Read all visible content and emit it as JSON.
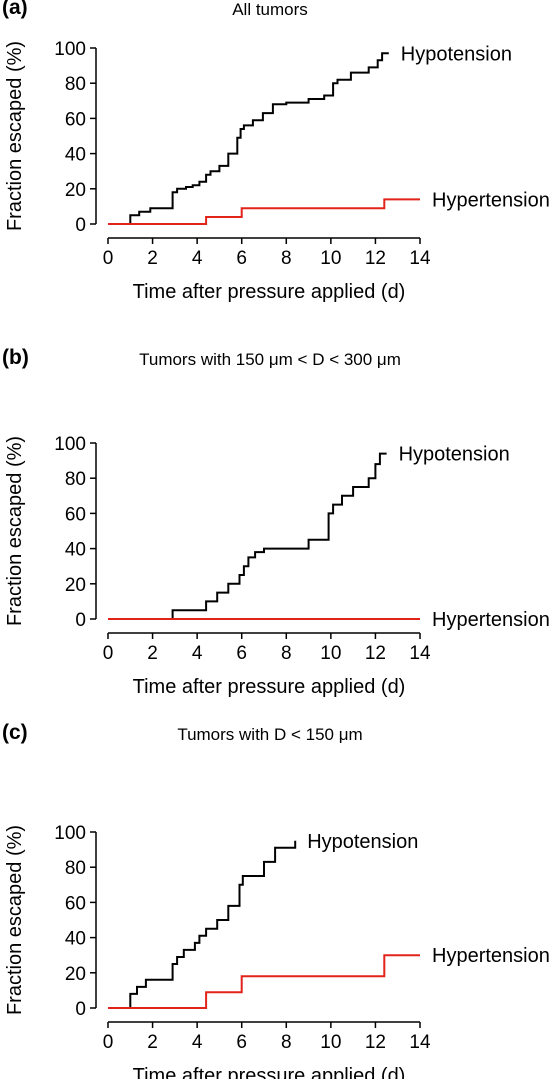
{
  "chart_data": [
    {
      "type": "line",
      "panel_label": "(a)",
      "title": "All tumors",
      "xlabel": "Time after pressure applied (d)",
      "ylabel": "Fraction escaped (%)",
      "xlim": [
        0,
        14
      ],
      "ylim": [
        0,
        100
      ],
      "xticks": [
        0,
        2,
        4,
        6,
        8,
        10,
        12,
        14
      ],
      "yticks": [
        0,
        20,
        40,
        60,
        80,
        100
      ],
      "grid": false,
      "series": [
        {
          "name": "Hypotension",
          "color": "#000000",
          "step": true,
          "x": [
            0,
            1.0,
            1.4,
            1.9,
            2.9,
            3.1,
            3.5,
            3.8,
            4.1,
            4.4,
            4.6,
            5.0,
            5.4,
            5.8,
            5.95,
            6.1,
            6.5,
            6.95,
            7.4,
            8.0,
            9.0,
            9.7,
            10.1,
            10.3,
            10.9,
            11.7,
            12.1,
            12.3,
            12.6
          ],
          "y": [
            0,
            5,
            7,
            9,
            18,
            20,
            21,
            22,
            24,
            28,
            30,
            33,
            40,
            49,
            54,
            56,
            59,
            63,
            68,
            69,
            71,
            73,
            80,
            82,
            86,
            89,
            93,
            97,
            97
          ]
        },
        {
          "name": "Hypertension",
          "color": "#e2231a",
          "step": true,
          "x": [
            0,
            4.4,
            6.0,
            12.4,
            14.0
          ],
          "y": [
            0,
            4,
            9,
            14,
            14
          ]
        }
      ]
    },
    {
      "type": "line",
      "panel_label": "(b)",
      "title": "Tumors with 150 μm < D < 300 μm",
      "xlabel": "Time after pressure applied (d)",
      "ylabel": "Fraction escaped (%)",
      "xlim": [
        0,
        14
      ],
      "ylim": [
        0,
        100
      ],
      "xticks": [
        0,
        2,
        4,
        6,
        8,
        10,
        12,
        14
      ],
      "yticks": [
        0,
        20,
        40,
        60,
        80,
        100
      ],
      "grid": false,
      "series": [
        {
          "name": "Hypotension",
          "color": "#000000",
          "step": true,
          "x": [
            0,
            2.9,
            4.4,
            4.9,
            5.4,
            5.9,
            6.1,
            6.3,
            6.6,
            7.0,
            9.0,
            9.9,
            10.1,
            10.5,
            11.0,
            11.7,
            12.0,
            12.2,
            12.5
          ],
          "y": [
            0,
            5,
            10,
            15,
            20,
            25,
            30,
            35,
            38,
            40,
            45,
            60,
            65,
            70,
            75,
            80,
            88,
            94,
            94
          ]
        },
        {
          "name": "Hypertension",
          "color": "#e2231a",
          "step": true,
          "x": [
            0,
            14.0
          ],
          "y": [
            0,
            0
          ]
        }
      ]
    },
    {
      "type": "line",
      "panel_label": "(c)",
      "title": "Tumors with D < 150 μm",
      "xlabel": "Time after pressure applied (d)",
      "ylabel": "Fraction escaped (%)",
      "xlim": [
        0,
        14
      ],
      "ylim": [
        0,
        100
      ],
      "xticks": [
        0,
        2,
        4,
        6,
        8,
        10,
        12,
        14
      ],
      "yticks": [
        0,
        20,
        40,
        60,
        80,
        100
      ],
      "grid": false,
      "series": [
        {
          "name": "Hypotension",
          "color": "#000000",
          "step": true,
          "x": [
            0,
            1.0,
            1.3,
            1.7,
            2.9,
            3.1,
            3.4,
            3.9,
            4.1,
            4.4,
            4.9,
            5.4,
            5.9,
            6.05,
            6.2,
            7.0,
            7.5,
            8.4
          ],
          "y": [
            0,
            8,
            12,
            16,
            25,
            29,
            33,
            37,
            41,
            45,
            50,
            58,
            70,
            75,
            75,
            83,
            91,
            95
          ]
        },
        {
          "name": "Hypertension",
          "color": "#e2231a",
          "step": true,
          "x": [
            0,
            4.4,
            6.0,
            12.4,
            14.0
          ],
          "y": [
            0,
            9,
            18,
            30,
            30
          ]
        }
      ]
    }
  ]
}
